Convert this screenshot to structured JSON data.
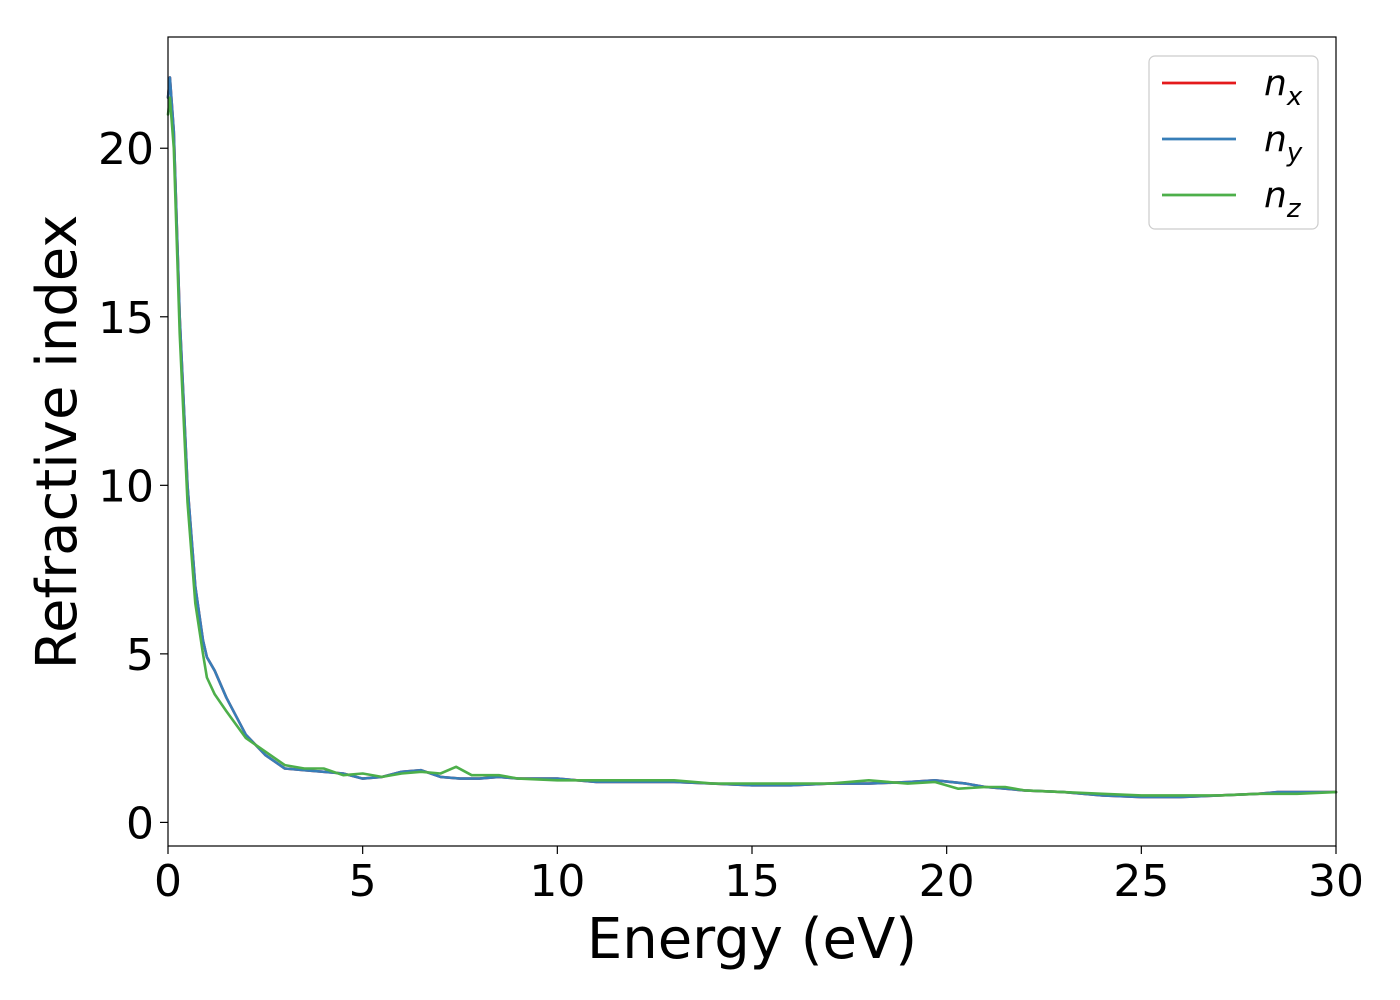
{
  "chart_data": {
    "type": "line",
    "title": "",
    "xlabel": "Energy (eV)",
    "ylabel": "Refractive index",
    "xlim": [
      0,
      30
    ],
    "ylim": [
      -0.7,
      23.3
    ],
    "x_ticks": [
      0,
      5,
      10,
      15,
      20,
      25,
      30
    ],
    "y_ticks": [
      0,
      5,
      10,
      15,
      20
    ],
    "grid": false,
    "legend_position": "top-right",
    "series": [
      {
        "name": "x",
        "legend_base": "n",
        "legend_sub": "x",
        "color": "#e41a1c",
        "x": [
          0,
          0.05,
          0.15,
          0.3,
          0.5,
          0.7,
          0.9,
          1.0,
          1.2,
          1.5,
          2.0,
          2.5,
          3.0,
          3.5,
          4.0,
          4.5,
          5.0,
          5.5,
          6.0,
          6.5,
          7.0,
          7.5,
          8.0,
          8.5,
          9.0,
          10.0,
          11.0,
          12.0,
          13.0,
          14.0,
          15.0,
          16.0,
          17.0,
          18.0,
          19.0,
          19.7,
          20.5,
          21.0,
          22.0,
          23.0,
          24.0,
          25.0,
          26.0,
          27.0,
          28.0,
          28.5,
          29.0,
          30.0
        ],
        "y": [
          21.5,
          22.1,
          20.5,
          15.0,
          10.0,
          7.0,
          5.4,
          4.9,
          4.5,
          3.7,
          2.6,
          2.0,
          1.6,
          1.55,
          1.5,
          1.45,
          1.3,
          1.35,
          1.5,
          1.55,
          1.35,
          1.3,
          1.3,
          1.35,
          1.3,
          1.3,
          1.2,
          1.2,
          1.2,
          1.15,
          1.1,
          1.1,
          1.15,
          1.15,
          1.2,
          1.25,
          1.15,
          1.05,
          0.95,
          0.9,
          0.8,
          0.75,
          0.75,
          0.8,
          0.85,
          0.9,
          0.9,
          0.9
        ]
      },
      {
        "name": "y",
        "legend_base": "n",
        "legend_sub": "y",
        "color": "#377eb8",
        "x": [
          0,
          0.05,
          0.15,
          0.3,
          0.5,
          0.7,
          0.9,
          1.0,
          1.2,
          1.5,
          2.0,
          2.5,
          3.0,
          3.5,
          4.0,
          4.5,
          5.0,
          5.5,
          6.0,
          6.5,
          7.0,
          7.5,
          8.0,
          8.5,
          9.0,
          10.0,
          11.0,
          12.0,
          13.0,
          14.0,
          15.0,
          16.0,
          17.0,
          18.0,
          19.0,
          19.7,
          20.5,
          21.0,
          22.0,
          23.0,
          24.0,
          25.0,
          26.0,
          27.0,
          28.0,
          28.5,
          29.0,
          30.0
        ],
        "y": [
          21.5,
          22.1,
          20.5,
          15.0,
          10.0,
          7.0,
          5.4,
          4.9,
          4.5,
          3.7,
          2.6,
          2.0,
          1.6,
          1.55,
          1.5,
          1.45,
          1.3,
          1.35,
          1.5,
          1.55,
          1.35,
          1.3,
          1.3,
          1.35,
          1.3,
          1.3,
          1.2,
          1.2,
          1.2,
          1.15,
          1.1,
          1.1,
          1.15,
          1.15,
          1.2,
          1.25,
          1.15,
          1.05,
          0.95,
          0.9,
          0.8,
          0.75,
          0.75,
          0.8,
          0.85,
          0.9,
          0.9,
          0.9
        ]
      },
      {
        "name": "z",
        "legend_base": "n",
        "legend_sub": "z",
        "color": "#4daf4a",
        "x": [
          0,
          0.05,
          0.15,
          0.3,
          0.5,
          0.7,
          0.9,
          1.0,
          1.2,
          1.5,
          2.0,
          2.5,
          3.0,
          3.5,
          4.0,
          4.5,
          5.0,
          5.5,
          6.0,
          6.5,
          7.0,
          7.4,
          7.8,
          8.5,
          9.0,
          10.0,
          11.0,
          12.0,
          13.0,
          14.0,
          15.0,
          16.0,
          17.0,
          18.0,
          19.0,
          19.7,
          20.3,
          21.0,
          21.5,
          22.0,
          23.0,
          24.0,
          25.0,
          26.0,
          27.0,
          28.0,
          29.0,
          30.0
        ],
        "y": [
          21.0,
          21.5,
          20.0,
          14.5,
          9.5,
          6.5,
          5.0,
          4.3,
          3.8,
          3.3,
          2.5,
          2.1,
          1.7,
          1.6,
          1.6,
          1.4,
          1.45,
          1.35,
          1.45,
          1.5,
          1.45,
          1.65,
          1.4,
          1.4,
          1.3,
          1.25,
          1.25,
          1.25,
          1.25,
          1.15,
          1.15,
          1.15,
          1.15,
          1.25,
          1.15,
          1.2,
          1.0,
          1.05,
          1.05,
          0.95,
          0.9,
          0.85,
          0.8,
          0.8,
          0.8,
          0.85,
          0.85,
          0.9
        ]
      }
    ]
  }
}
